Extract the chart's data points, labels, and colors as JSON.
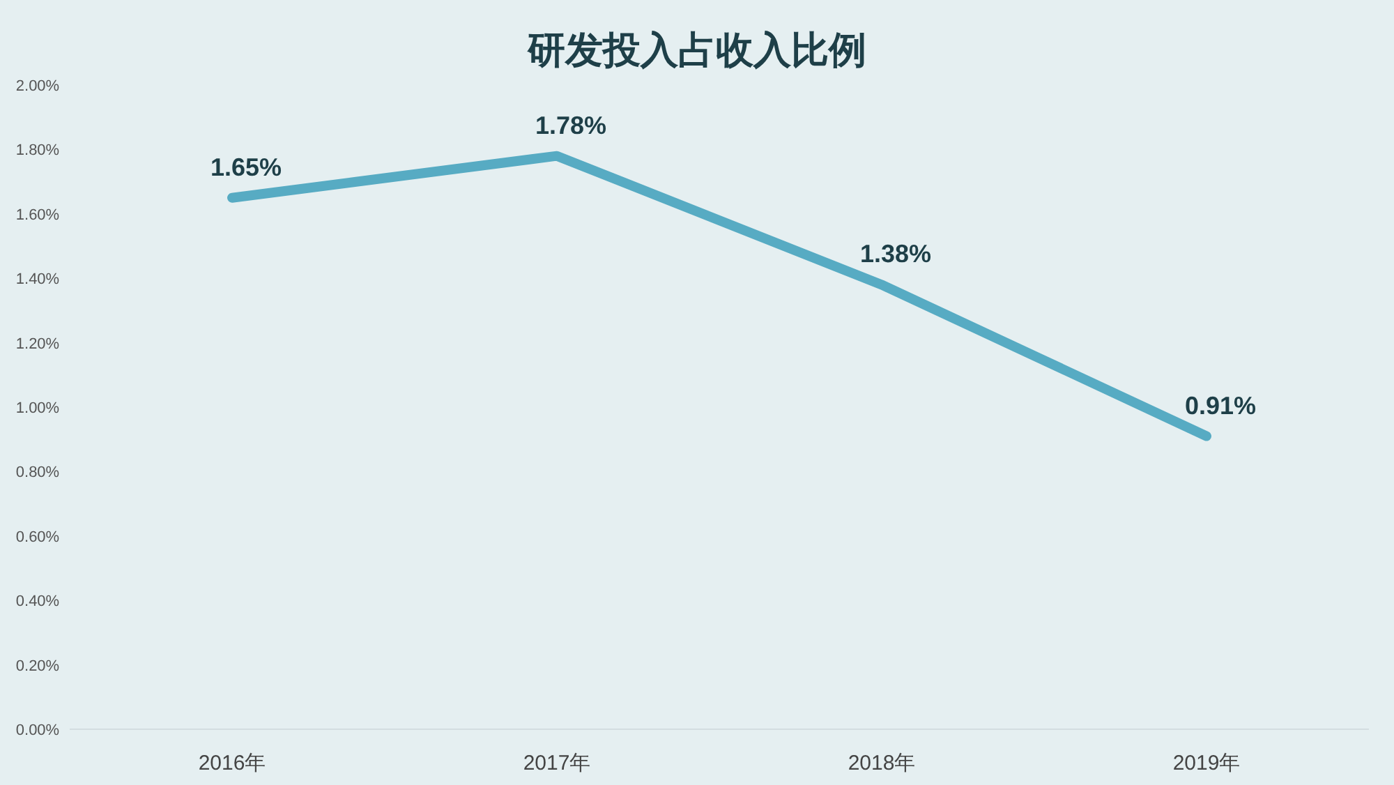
{
  "chart_data": {
    "type": "line",
    "title": "研发投入占收入比例",
    "categories": [
      "2016年",
      "2017年",
      "2018年",
      "2019年"
    ],
    "series": [
      {
        "color": "#57abc3",
        "values": [
          1.65,
          1.78,
          1.38,
          0.91
        ],
        "value_labels": [
          "1.65%",
          "1.78%",
          "1.38%",
          "0.91%"
        ]
      }
    ],
    "ylim": [
      0,
      2
    ],
    "yticks": [
      {
        "value": 0,
        "label": "0.00%"
      },
      {
        "value": 0.2,
        "label": "0.20%"
      },
      {
        "value": 0.4,
        "label": "0.40%"
      },
      {
        "value": 0.6,
        "label": "0.60%"
      },
      {
        "value": 0.8,
        "label": "0.80%"
      },
      {
        "value": 1,
        "label": "1.00%"
      },
      {
        "value": 1.2,
        "label": "1.20%"
      },
      {
        "value": 1.4,
        "label": "1.40%"
      },
      {
        "value": 1.6,
        "label": "1.60%"
      },
      {
        "value": 1.8,
        "label": "1.80%"
      },
      {
        "value": 2,
        "label": "2.00%"
      }
    ],
    "grid": false,
    "marker": "none",
    "line_style": "solid"
  }
}
